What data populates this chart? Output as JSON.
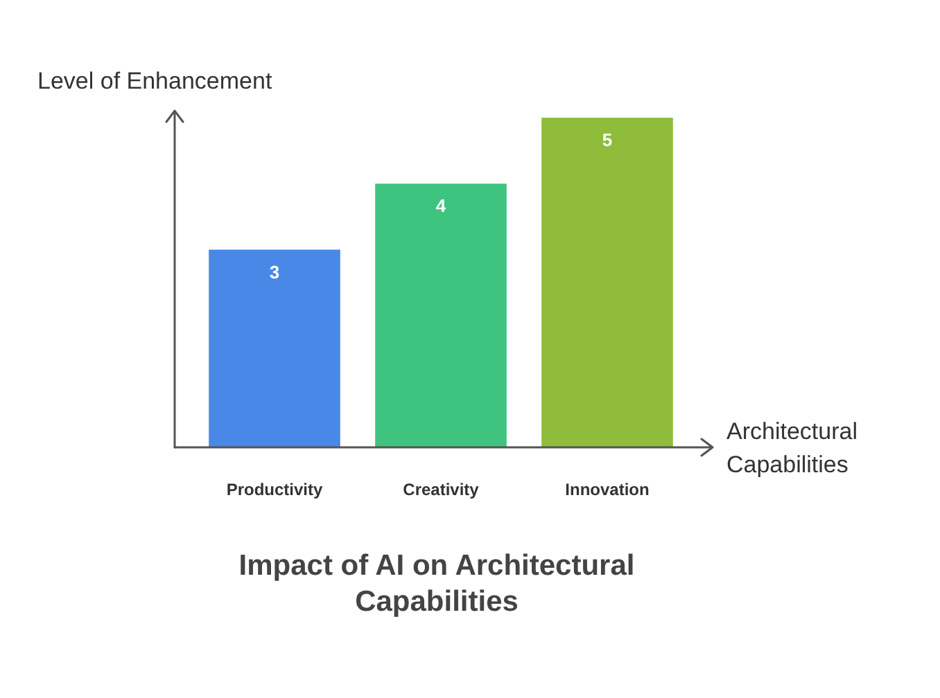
{
  "chart_data": {
    "type": "bar",
    "title": "Impact of AI on Architectural Capabilities",
    "xlabel": "Architectural Capabilities",
    "ylabel": "Level of Enhancement",
    "categories": [
      "Productivity",
      "Creativity",
      "Innovation"
    ],
    "values": [
      3,
      4,
      5
    ],
    "colors": [
      "#4a88e8",
      "#3ec47f",
      "#8fbc3a"
    ],
    "data_labels": true
  }
}
